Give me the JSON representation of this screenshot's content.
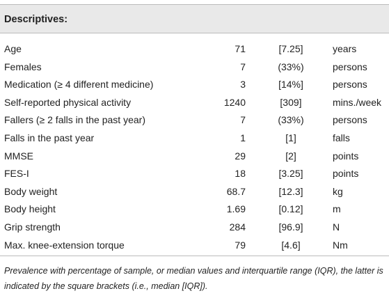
{
  "table": {
    "title": "Descriptives:",
    "rows": [
      [
        "Age",
        71,
        "[7.25]",
        "years"
      ],
      [
        "Females",
        7,
        "(33%)",
        "persons"
      ],
      [
        "Medication (≥ 4 different medicine)",
        3,
        "[14%]",
        "persons"
      ],
      [
        "Self-reported physical activity",
        1240,
        "[309]",
        "mins./week"
      ],
      [
        "Fallers (≥ 2 falls in the past year)",
        7,
        "(33%)",
        "persons"
      ],
      [
        "Falls in the past year",
        1,
        "[1]",
        "falls"
      ],
      [
        "MMSE",
        29,
        "[2]",
        "points"
      ],
      [
        "FES-I",
        18,
        "[3.25]",
        "points"
      ],
      [
        "Body weight",
        68.7,
        "[12.3]",
        "kg"
      ],
      [
        "Body height",
        1.69,
        "[0.12]",
        "m"
      ],
      [
        "Grip strength",
        284,
        "[96.9]",
        "N"
      ],
      [
        "Max. knee-extension torque",
        79,
        "[4.6]",
        "Nm"
      ]
    ],
    "footnote": "Prevalence with percentage of sample, or median values and interquartile range (IQR), the latter is indicated by the square brackets (i.e., median [IQR])."
  }
}
